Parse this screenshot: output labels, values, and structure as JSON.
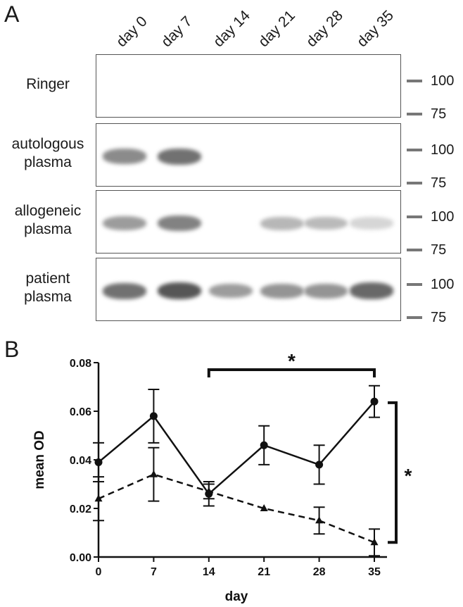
{
  "panel_a": {
    "letter": "A",
    "lanes": [
      "day 0",
      "day 7",
      "day 14",
      "day 21",
      "day 28",
      "day 35"
    ],
    "rows": [
      {
        "label_lines": [
          "Ringer"
        ],
        "bands": [
          0,
          0,
          0,
          0,
          0,
          0
        ]
      },
      {
        "label_lines": [
          "autologous",
          "plasma"
        ],
        "bands": [
          0.55,
          0.7,
          0,
          0,
          0,
          0
        ]
      },
      {
        "label_lines": [
          "allogeneic",
          "plasma"
        ],
        "bands": [
          0.45,
          0.6,
          0,
          0.3,
          0.28,
          0.12
        ]
      },
      {
        "label_lines": [
          "patient",
          "plasma"
        ],
        "bands": [
          0.7,
          0.85,
          0.45,
          0.5,
          0.5,
          0.75
        ]
      }
    ],
    "markers": [
      "100",
      "75"
    ]
  },
  "panel_b": {
    "letter": "B",
    "chart_data": {
      "type": "line",
      "xlabel": "day",
      "ylabel": "mean OD",
      "x": [
        0,
        7,
        14,
        21,
        28,
        35
      ],
      "xticks": [
        "0",
        "7",
        "14",
        "21",
        "28",
        "35"
      ],
      "yticks": [
        "0.00",
        "0.02",
        "0.04",
        "0.06",
        "0.08"
      ],
      "ylim": [
        0,
        0.08
      ],
      "xlim": [
        0,
        35
      ],
      "series": [
        {
          "style": "solid",
          "marker": "circle",
          "values": [
            0.039,
            0.058,
            0.026,
            0.046,
            0.038,
            0.064
          ],
          "errors": [
            0.008,
            0.011,
            0.005,
            0.008,
            0.008,
            0.0065
          ]
        },
        {
          "style": "dashed",
          "marker": "triangle",
          "values": [
            0.024,
            0.034,
            0.027,
            0.02,
            0.015,
            0.006
          ],
          "errors": [
            0.009,
            0.011,
            0.003,
            0,
            0.0055,
            0.0055
          ]
        }
      ],
      "annotations": [
        {
          "text": "*",
          "type": "horizontal-bracket",
          "from_x": 14,
          "to_x": 35
        },
        {
          "text": "*",
          "type": "vertical-bracket"
        }
      ]
    }
  }
}
